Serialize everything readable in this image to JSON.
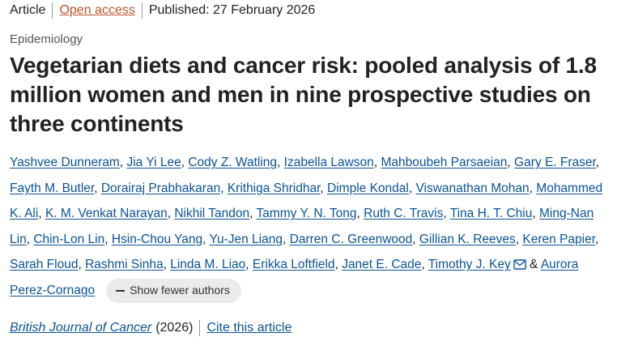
{
  "header": {
    "article_type": "Article",
    "access": "Open access",
    "published": "Published: 27 February 2026"
  },
  "subject": "Epidemiology",
  "title": "Vegetarian diets and cancer risk: pooled analysis of 1.8 million women and men in nine prospective studies on three continents",
  "authors": {
    "separator": ",",
    "conjunction": "&",
    "list": [
      {
        "name": "Yashvee Dunneram"
      },
      {
        "name": "Jia Yi Lee"
      },
      {
        "name": "Cody Z. Watling"
      },
      {
        "name": "Izabella Lawson"
      },
      {
        "name": "Mahboubeh Parsaeian"
      },
      {
        "name": "Gary E. Fraser"
      },
      {
        "name": "Fayth M. Butler"
      },
      {
        "name": "Dorairaj Prabhakaran"
      },
      {
        "name": "Krithiga Shridhar"
      },
      {
        "name": "Dimple Kondal"
      },
      {
        "name": "Viswanathan Mohan"
      },
      {
        "name": "Mohammed K. Ali"
      },
      {
        "name": "K. M. Venkat Narayan"
      },
      {
        "name": "Nikhil Tandon"
      },
      {
        "name": "Tammy Y. N. Tong"
      },
      {
        "name": "Ruth C. Travis"
      },
      {
        "name": "Tina H. T. Chiu"
      },
      {
        "name": "Ming-Nan Lin"
      },
      {
        "name": "Chin-Lon Lin"
      },
      {
        "name": "Hsin-Chou Yang"
      },
      {
        "name": "Yu-Jen Liang"
      },
      {
        "name": "Darren C. Greenwood"
      },
      {
        "name": "Gillian K. Reeves"
      },
      {
        "name": "Keren Papier"
      },
      {
        "name": "Sarah Floud"
      },
      {
        "name": "Rashmi Sinha"
      },
      {
        "name": "Linda M. Liao"
      },
      {
        "name": "Erikka Loftfield"
      },
      {
        "name": "Janet E. Cade"
      },
      {
        "name": "Timothy J. Key",
        "corresponding": true
      },
      {
        "name": "Aurora Perez-Cornago"
      }
    ],
    "toggle": "Show fewer authors"
  },
  "citation": {
    "journal": "British Journal of Cancer",
    "year": "(2026)",
    "cite": "Cite this article"
  }
}
